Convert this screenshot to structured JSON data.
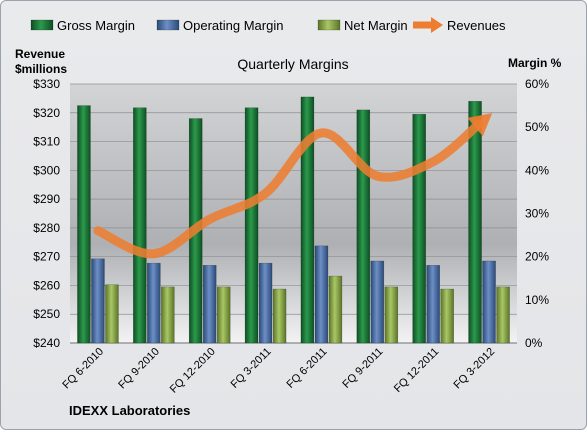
{
  "chart_data": {
    "type": "bar",
    "title": "Quarterly Margins",
    "company": "IDEXX Laboratories",
    "categories": [
      "FQ 6-2010",
      "FQ 9-2010",
      "FQ 12-2010",
      "FQ 3-2011",
      "FQ 6-2011",
      "FQ 9-2011",
      "FQ 12-2011",
      "FQ 3-2012"
    ],
    "series": [
      {
        "name": "Gross Margin",
        "type": "bar",
        "axis": "right",
        "color": "#1f7a3a",
        "values": [
          0.55,
          0.545,
          0.52,
          0.545,
          0.57,
          0.54,
          0.53,
          0.56
        ]
      },
      {
        "name": "Operating Margin",
        "type": "bar",
        "axis": "right",
        "color": "#4a6fa5",
        "values": [
          0.195,
          0.185,
          0.18,
          0.185,
          0.225,
          0.19,
          0.18,
          0.19
        ]
      },
      {
        "name": "Net Margin",
        "type": "bar",
        "axis": "right",
        "color": "#8aa84a",
        "values": [
          0.135,
          0.13,
          0.13,
          0.125,
          0.155,
          0.13,
          0.125,
          0.13
        ]
      },
      {
        "name": "Revenues",
        "type": "line",
        "axis": "left",
        "color": "#ed7d31",
        "values": [
          279,
          271,
          283,
          292,
          313,
          298,
          303,
          319
        ]
      }
    ],
    "left_axis": {
      "label_line1": "Revenue",
      "label_line2": "$millions",
      "min": 240,
      "max": 330,
      "ticks": [
        "$240",
        "$250",
        "$260",
        "$270",
        "$280",
        "$290",
        "$300",
        "$310",
        "$320",
        "$330"
      ]
    },
    "right_axis": {
      "label": "Margin %",
      "min": 0,
      "max": 0.6,
      "ticks": [
        "0%",
        "10%",
        "20%",
        "30%",
        "40%",
        "50%",
        "60%"
      ]
    },
    "legend": {
      "position": "top"
    },
    "grid": true
  }
}
